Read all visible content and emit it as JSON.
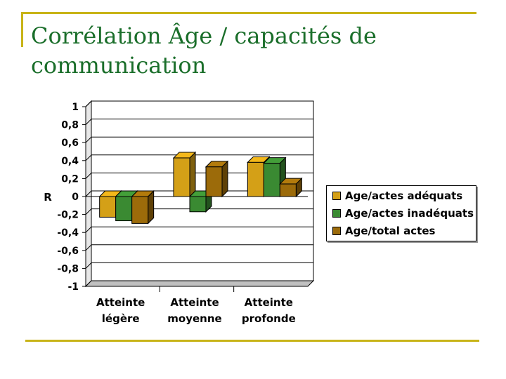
{
  "slide": {
    "title": "Corrélation Âge / capacités de communication"
  },
  "chart_data": {
    "type": "bar",
    "ylabel": "R",
    "ylim": [
      -1,
      1
    ],
    "yticks": [
      "1",
      "0,8",
      "0,6",
      "0,4",
      "0,2",
      "0",
      "-0,2",
      "-0,4",
      "-0,6",
      "-0,8",
      "-1"
    ],
    "categories": [
      [
        "Atteinte",
        "légère"
      ],
      [
        "Atteinte",
        "moyenne"
      ],
      [
        "Atteinte",
        "profonde"
      ]
    ],
    "series": [
      {
        "name": "Age/actes adéquats",
        "color": "#d4a017",
        "values": [
          -0.23,
          0.43,
          0.38
        ]
      },
      {
        "name": "Age/actes inadéquats",
        "color": "#3a8a32",
        "values": [
          -0.27,
          -0.17,
          0.37
        ]
      },
      {
        "name": "Age/total actes",
        "color": "#9c6b0a",
        "values": [
          -0.3,
          0.33,
          0.14
        ]
      }
    ],
    "grid": true,
    "legend_position": "right"
  }
}
